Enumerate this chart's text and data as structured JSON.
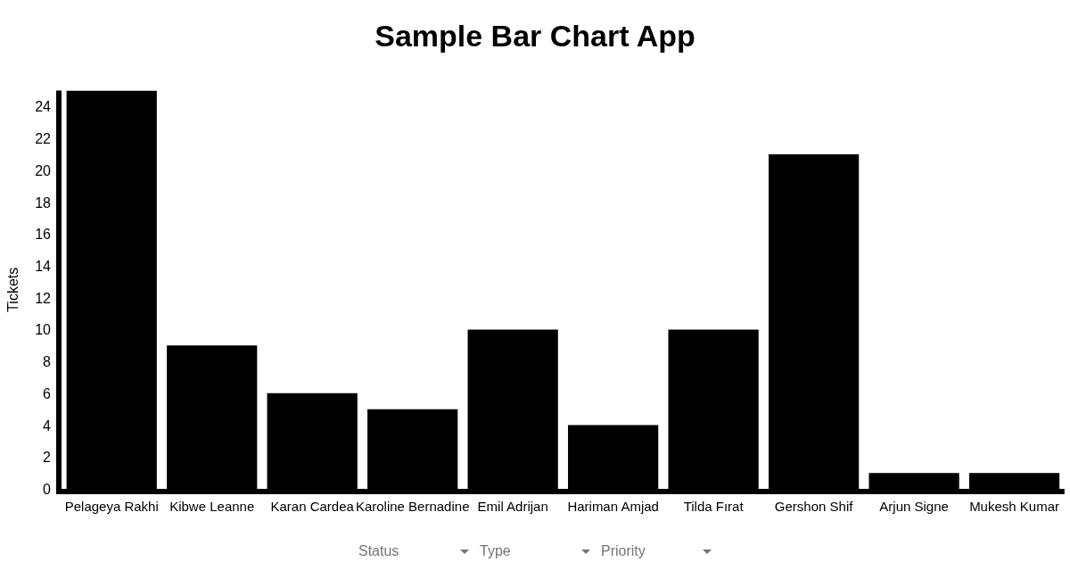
{
  "chart_data": {
    "type": "bar",
    "title": "Sample Bar Chart App",
    "ylabel": "Tickets",
    "categories": [
      "Pelageya Rakhi",
      "Kibwe Leanne",
      "Karan Cardea",
      "Karoline Bernadine",
      "Emil Adrijan",
      "Hariman Amjad",
      "Tilda Fırat",
      "Gershon Shif",
      "Arjun Signe",
      "Mukesh Kumar"
    ],
    "values": [
      25,
      9,
      6,
      5,
      10,
      4,
      10,
      21,
      1,
      1
    ],
    "color": "#000000",
    "ylim": [
      0,
      25
    ],
    "yticks": [
      0,
      2,
      4,
      6,
      8,
      10,
      12,
      14,
      16,
      18,
      20,
      22,
      24
    ],
    "annotations": [
      "Status",
      "Type",
      "Priority"
    ]
  }
}
